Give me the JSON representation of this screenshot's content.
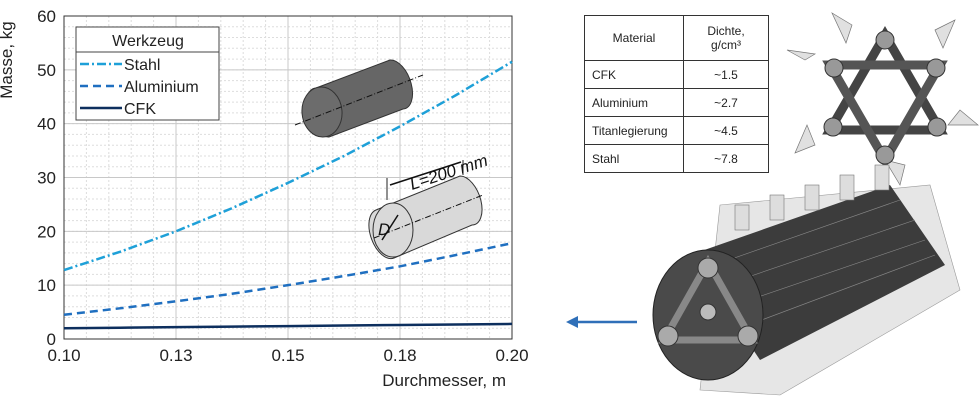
{
  "chart_data": {
    "type": "line",
    "title": "",
    "xlabel": "Durchmesser, m",
    "ylabel": "Masse, kg",
    "xlim": [
      0.1,
      0.2
    ],
    "ylim": [
      0,
      60
    ],
    "xticks": [
      0.1,
      0.125,
      0.15,
      0.175,
      0.2
    ],
    "xtick_labels": [
      "0.10",
      "0.13",
      "0.15",
      "0.18",
      "0.20"
    ],
    "yticks": [
      0,
      10,
      20,
      30,
      40,
      50,
      60
    ],
    "ytick_labels": [
      "0",
      "10",
      "20",
      "30",
      "40",
      "50",
      "60"
    ],
    "grid": true,
    "legend": {
      "title": "Werkzeug",
      "placement": "top-left"
    },
    "x": [
      0.1,
      0.1125,
      0.125,
      0.1375,
      0.15,
      0.1625,
      0.175,
      0.1875,
      0.2
    ],
    "series": [
      {
        "name": "Stahl",
        "color": "#1ea0d8",
        "dash": "dashdot",
        "values": [
          12.8,
          16.2,
          20.0,
          24.3,
          29.0,
          34.0,
          39.5,
          45.3,
          51.5
        ]
      },
      {
        "name": "Aluminium",
        "color": "#1f6fc0",
        "dash": "dashed",
        "values": [
          4.5,
          5.7,
          7.0,
          8.4,
          10.0,
          11.7,
          13.5,
          15.6,
          17.8
        ]
      },
      {
        "name": "CFK",
        "color": "#0d2f5e",
        "dash": "solid",
        "values": [
          2.0,
          2.1,
          2.2,
          2.3,
          2.4,
          2.5,
          2.6,
          2.7,
          2.8
        ]
      }
    ],
    "annotations": [
      "L=200 mm",
      "D"
    ]
  },
  "table": {
    "headers": [
      "Material",
      "Dichte,",
      "g/cm³"
    ],
    "rows": [
      {
        "material": "CFK",
        "density": "~1.5"
      },
      {
        "material": "Aluminium",
        "density": "~2.7"
      },
      {
        "material": "Titanlegierung",
        "density": "~4.5"
      },
      {
        "material": "Stahl",
        "density": "~7.8"
      }
    ]
  }
}
